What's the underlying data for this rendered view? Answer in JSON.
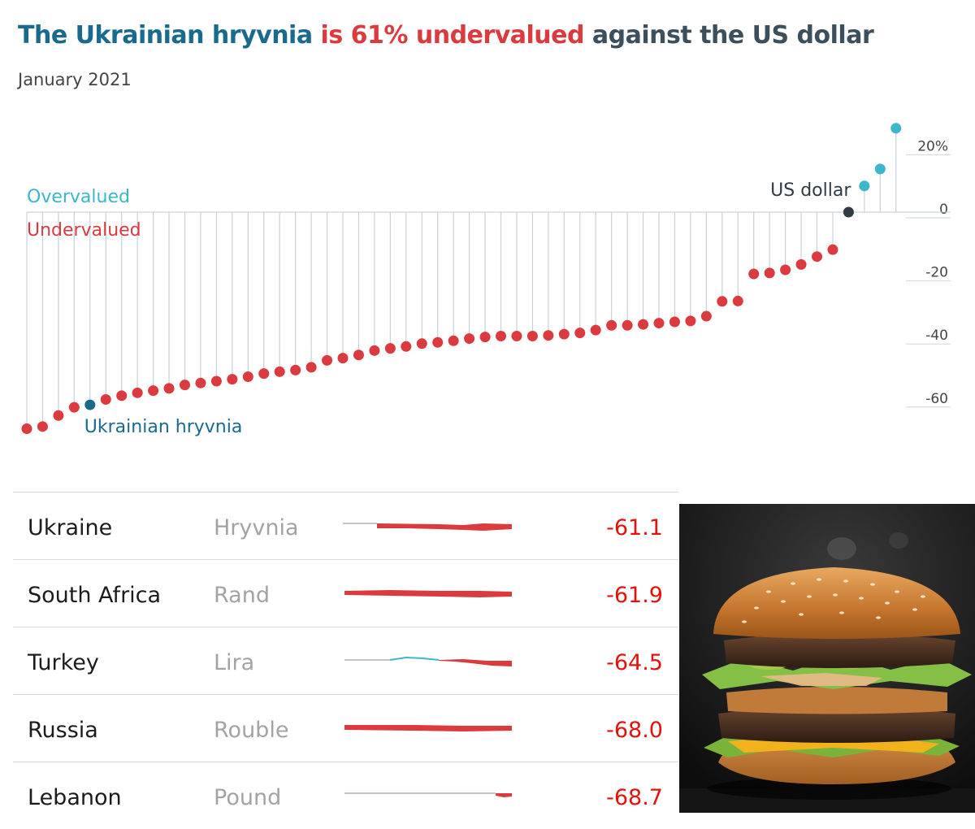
{
  "header": {
    "title_parts": [
      {
        "text": "The Ukrainian hryvnia ",
        "color": "#1a6a8e"
      },
      {
        "text": "is 61% undervalued",
        "color": "#db3a3e"
      },
      {
        "text": " against the US dollar",
        "color": "#3c4f5c"
      }
    ],
    "subtitle": "January 2021"
  },
  "chart_data": {
    "type": "scatter",
    "title": "The Ukrainian hryvnia is 61% undervalued against the US dollar",
    "subtitle": "January 2021",
    "xlabel": "",
    "ylabel": "",
    "ylim": [
      -70,
      30
    ],
    "ticks": [
      20,
      0,
      -20,
      -40,
      -60
    ],
    "tick_labels": [
      "20%",
      "0",
      "-20",
      "-40",
      "-60"
    ],
    "grid": true,
    "legend_labels": {
      "over": "Overvalued",
      "under": "Undervalued"
    },
    "annotations": [
      {
        "text": "US dollar",
        "point_index": 52
      },
      {
        "text": "Ukrainian hryvnia",
        "point_index": 4
      }
    ],
    "colors": {
      "undervalued": "#db3a3e",
      "overvalued": "#3bb6cc",
      "highlight": "#1a6a8e",
      "base": "#2f3b45"
    },
    "values": [
      -68.7,
      -68.0,
      -64.5,
      -61.9,
      -61.1,
      -59.4,
      -58.2,
      -57.3,
      -56.6,
      -55.9,
      -54.8,
      -54.2,
      -53.6,
      -53.0,
      -52.2,
      -51.2,
      -50.6,
      -50.1,
      -49.2,
      -47.0,
      -46.3,
      -45.3,
      -43.9,
      -43.2,
      -42.6,
      -41.7,
      -41.3,
      -40.8,
      -40.1,
      -39.6,
      -39.3,
      -39.3,
      -39.3,
      -39.1,
      -38.7,
      -38.3,
      -37.4,
      -35.9,
      -35.9,
      -35.6,
      -35.2,
      -34.8,
      -34.5,
      -33.0,
      -28.3,
      -28.2,
      -19.6,
      -19.3,
      -18.3,
      -16.6,
      -14.1,
      -11.9,
      0,
      8.3,
      13.7,
      26.6
    ],
    "highlight_index": 4,
    "base_index": 52
  },
  "table": {
    "rows": [
      {
        "country": "Ukraine",
        "currency": "Hryvnia",
        "value": "-61.1"
      },
      {
        "country": "South Africa",
        "currency": "Rand",
        "value": "-61.9"
      },
      {
        "country": "Turkey",
        "currency": "Lira",
        "value": "-64.5"
      },
      {
        "country": "Russia",
        "currency": "Rouble",
        "value": "-68.0"
      },
      {
        "country": "Lebanon",
        "currency": "Pound",
        "value": "-68.7"
      }
    ]
  }
}
